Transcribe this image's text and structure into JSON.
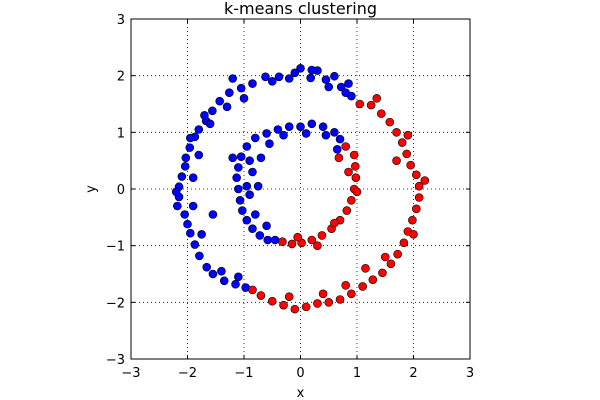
{
  "chart_data": {
    "type": "scatter",
    "title": "k-means clustering",
    "xlabel": "x",
    "ylabel": "y",
    "xlim": [
      -3,
      3
    ],
    "ylim": [
      -3,
      3
    ],
    "xticks": [
      -3,
      -2,
      -1,
      0,
      1,
      2,
      3
    ],
    "yticks": [
      -3,
      -2,
      -1,
      0,
      1,
      2,
      3
    ],
    "grid": true,
    "grid_style": "dotted",
    "legend": false,
    "series": [
      {
        "color": "#0000ff",
        "points": [
          [
            0.0,
            2.13
          ],
          [
            0.3,
            2.09
          ],
          [
            0.6,
            1.99
          ],
          [
            0.85,
            1.86
          ],
          [
            0.9,
            1.64
          ],
          [
            0.72,
            1.8
          ],
          [
            0.45,
            1.93
          ],
          [
            0.18,
            1.96
          ],
          [
            -0.1,
            2.05
          ],
          [
            -0.38,
            1.98
          ],
          [
            -0.62,
            1.98
          ],
          [
            -0.85,
            1.86
          ],
          [
            -1.05,
            1.78
          ],
          [
            -1.26,
            1.7
          ],
          [
            -1.43,
            1.55
          ],
          [
            -1.56,
            1.38
          ],
          [
            -1.67,
            1.2
          ],
          [
            -1.8,
            1.05
          ],
          [
            -1.87,
            0.92
          ],
          [
            -1.96,
            0.73
          ],
          [
            -2.03,
            0.55
          ],
          [
            -2.04,
            0.4
          ],
          [
            -2.1,
            0.22
          ],
          [
            -2.15,
            0.04
          ],
          [
            -2.15,
            -0.14
          ],
          [
            -2.18,
            -0.3
          ],
          [
            -2.05,
            -0.45
          ],
          [
            -2.0,
            -0.62
          ],
          [
            -1.95,
            -0.78
          ],
          [
            -1.87,
            -0.98
          ],
          [
            -1.79,
            -1.18
          ],
          [
            -1.66,
            -1.38
          ],
          [
            -1.55,
            -1.5
          ],
          [
            -1.35,
            -1.62
          ],
          [
            -1.15,
            -1.68
          ],
          [
            -0.97,
            -1.74
          ],
          [
            -1.8,
            0.6
          ],
          [
            -1.9,
            0.2
          ],
          [
            -1.9,
            -0.3
          ],
          [
            -1.75,
            -0.8
          ],
          [
            -1.6,
            1.15
          ],
          [
            -1.3,
            1.45
          ],
          [
            -1.0,
            1.6
          ],
          [
            -0.5,
            1.9
          ],
          [
            -0.2,
            1.95
          ],
          [
            0.2,
            2.1
          ],
          [
            0.5,
            1.8
          ],
          [
            0.8,
            1.7
          ],
          [
            -1.55,
            -0.45
          ],
          [
            -1.95,
            0.9
          ],
          [
            -1.2,
            1.95
          ],
          [
            -1.7,
            1.3
          ],
          [
            -2.2,
            -0.05
          ],
          [
            -1.4,
            -1.45
          ],
          [
            -1.1,
            -1.55
          ],
          [
            0.0,
            1.1
          ],
          [
            0.2,
            1.15
          ],
          [
            0.4,
            1.1
          ],
          [
            0.6,
            1.0
          ],
          [
            0.7,
            0.88
          ],
          [
            0.65,
            0.7
          ],
          [
            -0.2,
            1.1
          ],
          [
            -0.4,
            1.05
          ],
          [
            -0.6,
            0.98
          ],
          [
            -0.8,
            0.9
          ],
          [
            -0.95,
            0.75
          ],
          [
            -1.05,
            0.57
          ],
          [
            -1.1,
            0.38
          ],
          [
            -1.13,
            0.2
          ],
          [
            -1.1,
            0.0
          ],
          [
            -1.07,
            -0.2
          ],
          [
            -1.03,
            -0.38
          ],
          [
            -0.95,
            -0.55
          ],
          [
            -0.85,
            -0.7
          ],
          [
            -0.72,
            -0.82
          ],
          [
            -0.58,
            -0.9
          ],
          [
            -0.45,
            -0.9
          ],
          [
            -0.7,
            0.55
          ],
          [
            -0.85,
            0.3
          ],
          [
            -0.9,
            -0.1
          ],
          [
            -0.8,
            -0.45
          ],
          [
            -0.3,
            0.95
          ],
          [
            0.1,
            0.98
          ],
          [
            0.45,
            0.95
          ],
          [
            -0.55,
            0.8
          ],
          [
            -1.2,
            0.55
          ],
          [
            -0.95,
            0.05
          ],
          [
            -0.6,
            -0.65
          ],
          [
            -0.75,
            0.05
          ],
          [
            -0.9,
            0.5
          ]
        ]
      },
      {
        "color": "#ff0000",
        "points": [
          [
            1.05,
            1.5
          ],
          [
            1.25,
            1.48
          ],
          [
            1.43,
            1.33
          ],
          [
            1.58,
            1.18
          ],
          [
            1.7,
            1.0
          ],
          [
            1.8,
            0.82
          ],
          [
            1.88,
            0.62
          ],
          [
            1.95,
            0.42
          ],
          [
            2.05,
            0.25
          ],
          [
            2.1,
            0.05
          ],
          [
            2.1,
            -0.15
          ],
          [
            2.05,
            -0.35
          ],
          [
            1.98,
            -0.55
          ],
          [
            1.9,
            -0.75
          ],
          [
            1.83,
            -0.95
          ],
          [
            1.72,
            -1.15
          ],
          [
            1.6,
            -1.32
          ],
          [
            1.45,
            -1.48
          ],
          [
            1.28,
            -1.6
          ],
          [
            1.1,
            -1.72
          ],
          [
            0.9,
            -1.85
          ],
          [
            0.7,
            -1.95
          ],
          [
            0.5,
            -2.0
          ],
          [
            0.3,
            -2.02
          ],
          [
            0.1,
            -2.08
          ],
          [
            -0.1,
            -2.12
          ],
          [
            -0.3,
            -2.05
          ],
          [
            -0.5,
            -1.98
          ],
          [
            -0.7,
            -1.88
          ],
          [
            -0.85,
            -1.78
          ],
          [
            1.9,
            0.95
          ],
          [
            2.0,
            -0.8
          ],
          [
            1.5,
            -1.2
          ],
          [
            0.8,
            -1.7
          ],
          [
            1.15,
            -1.4
          ],
          [
            -0.2,
            -1.9
          ],
          [
            0.4,
            -1.85
          ],
          [
            1.7,
            0.5
          ],
          [
            2.2,
            0.15
          ],
          [
            1.35,
            1.6
          ],
          [
            0.95,
            0.6
          ],
          [
            0.97,
            0.4
          ],
          [
            0.98,
            0.2
          ],
          [
            0.95,
            0.0
          ],
          [
            0.9,
            -0.2
          ],
          [
            0.82,
            -0.38
          ],
          [
            0.7,
            -0.55
          ],
          [
            0.55,
            -0.7
          ],
          [
            0.38,
            -0.82
          ],
          [
            0.2,
            -0.9
          ],
          [
            0.02,
            -0.95
          ],
          [
            -0.15,
            -0.97
          ],
          [
            -0.32,
            -0.93
          ],
          [
            0.8,
            0.75
          ],
          [
            0.68,
            0.55
          ],
          [
            1.0,
            -0.05
          ],
          [
            0.85,
            0.3
          ],
          [
            0.6,
            -0.6
          ],
          [
            -0.05,
            -0.85
          ],
          [
            0.3,
            -1.0
          ]
        ]
      }
    ]
  }
}
